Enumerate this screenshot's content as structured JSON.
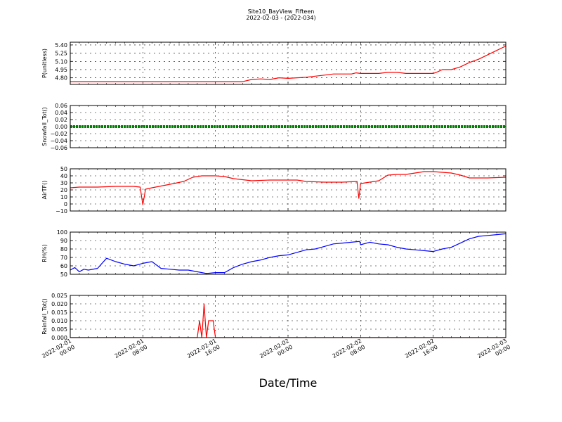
{
  "title": "Site10_BayView_Fifteen",
  "subtitle": "2022-02-03 - (2022-034)",
  "xlabel": "Date/Time",
  "x_ticks": [
    {
      "line1": "2022-02-01",
      "line2": "00:00",
      "hour": 0
    },
    {
      "line1": "2022-02-01",
      "line2": "08:00",
      "hour": 8
    },
    {
      "line1": "2022-02-01",
      "line2": "16:00",
      "hour": 16
    },
    {
      "line1": "2022-02-02",
      "line2": "00:00",
      "hour": 24
    },
    {
      "line1": "2022-02-02",
      "line2": "08:00",
      "hour": 32
    },
    {
      "line1": "2022-02-02",
      "line2": "16:00",
      "hour": 40
    },
    {
      "line1": "2022-02-03",
      "line2": "00:00",
      "hour": 48
    }
  ],
  "chart_data": [
    {
      "type": "line",
      "ylabel": "P(unitless)",
      "ylim": [
        4.68,
        5.45
      ],
      "yticks": [
        "5.40",
        "5.25",
        "5.10",
        "4.95",
        "4.80"
      ],
      "ytick_values": [
        5.4,
        5.25,
        5.1,
        4.95,
        4.8
      ],
      "color": "#ff0000",
      "x": [
        0,
        4,
        8,
        12,
        16,
        19,
        20,
        21,
        22,
        23,
        24,
        25,
        26,
        27,
        28,
        29,
        30,
        31,
        31.5,
        32,
        33,
        34,
        35,
        36,
        37,
        38,
        39,
        40,
        40.5,
        41,
        42,
        43,
        44,
        45,
        46,
        47,
        48
      ],
      "values": [
        4.73,
        4.73,
        4.73,
        4.73,
        4.73,
        4.73,
        4.77,
        4.78,
        4.77,
        4.8,
        4.79,
        4.8,
        4.81,
        4.83,
        4.85,
        4.87,
        4.87,
        4.87,
        4.89,
        4.88,
        4.88,
        4.88,
        4.9,
        4.9,
        4.88,
        4.88,
        4.88,
        4.88,
        4.91,
        4.95,
        4.95,
        5.0,
        5.08,
        5.14,
        5.22,
        5.3,
        5.38
      ]
    },
    {
      "type": "line",
      "ylabel": "Snowfall_Tot()",
      "ylim": [
        -0.06,
        0.06
      ],
      "yticks": [
        "0.06",
        "0.04",
        "0.02",
        "0.00",
        "−0.02",
        "−0.04",
        "−0.06"
      ],
      "ytick_values": [
        0.06,
        0.04,
        0.02,
        0.0,
        -0.02,
        -0.04,
        -0.06
      ],
      "color": "#008000",
      "x": [
        0,
        48
      ],
      "values": [
        0.0,
        0.0
      ]
    },
    {
      "type": "line",
      "ylabel": "AirTF()",
      "ylim": [
        -10,
        50
      ],
      "yticks": [
        "50",
        "40",
        "30",
        "20",
        "10",
        "0",
        "−10"
      ],
      "ytick_values": [
        50,
        40,
        30,
        20,
        10,
        0,
        -10
      ],
      "color": "#ff0000",
      "x": [
        0,
        1,
        3,
        5,
        7,
        7.7,
        8,
        8.3,
        9,
        11,
        12.5,
        13.5,
        14.5,
        16,
        17,
        18,
        20,
        22,
        24,
        25,
        26,
        28,
        30,
        31.6,
        31.8,
        32,
        34,
        35,
        36,
        37,
        38,
        39,
        40,
        41,
        42,
        43,
        44,
        46,
        48
      ],
      "values": [
        23,
        24,
        24,
        25,
        25,
        24,
        -1,
        21,
        23,
        28,
        32,
        38,
        40,
        40,
        39,
        36,
        33,
        34,
        34,
        34,
        32,
        31,
        31,
        32,
        8,
        29,
        33,
        41,
        42,
        42,
        44,
        46,
        46,
        45,
        44,
        41,
        37,
        37,
        38
      ]
    },
    {
      "type": "line",
      "ylabel": "RH(%)",
      "ylim": [
        50,
        100
      ],
      "yticks": [
        "100",
        "90",
        "80",
        "70",
        "60",
        "50"
      ],
      "ytick_values": [
        100,
        90,
        80,
        70,
        60,
        50
      ],
      "color": "#0000ff",
      "x": [
        0,
        0.5,
        1,
        1.5,
        2,
        3,
        4,
        5,
        6,
        7,
        8,
        9,
        10,
        11,
        12,
        13,
        14,
        15,
        16,
        17,
        18,
        19,
        20,
        21,
        22,
        23,
        24,
        25,
        26,
        27,
        28,
        29,
        30,
        31,
        31.9,
        32,
        33,
        34,
        35,
        36,
        37,
        38,
        39,
        40,
        41,
        42,
        43,
        44,
        45,
        46,
        47,
        48
      ],
      "values": [
        55,
        58,
        53,
        56,
        55,
        57,
        69,
        65,
        62,
        60,
        63,
        65,
        57,
        56,
        55,
        55,
        53,
        51,
        52,
        52,
        58,
        62,
        65,
        67,
        70,
        72,
        73,
        76,
        79,
        80,
        83,
        86,
        87,
        88,
        89,
        85,
        88,
        86,
        85,
        82,
        80,
        79,
        78,
        77,
        80,
        82,
        87,
        92,
        95,
        96,
        97,
        98
      ]
    },
    {
      "type": "line",
      "ylabel": "Rainfall_Tot()",
      "ylim": [
        0,
        0.025
      ],
      "yticks": [
        "0.025",
        "0.020",
        "0.015",
        "0.010",
        "0.005",
        "0.000"
      ],
      "ytick_values": [
        0.025,
        0.02,
        0.015,
        0.01,
        0.005,
        0.0
      ],
      "color": "#ff0000",
      "x": [
        0,
        14,
        14.25,
        14.5,
        14.75,
        15,
        15.25,
        15.5,
        15.75,
        16,
        48
      ],
      "values": [
        0,
        0,
        0.01,
        0,
        0.02,
        0,
        0.01,
        0.01,
        0.01,
        0,
        0
      ]
    }
  ]
}
